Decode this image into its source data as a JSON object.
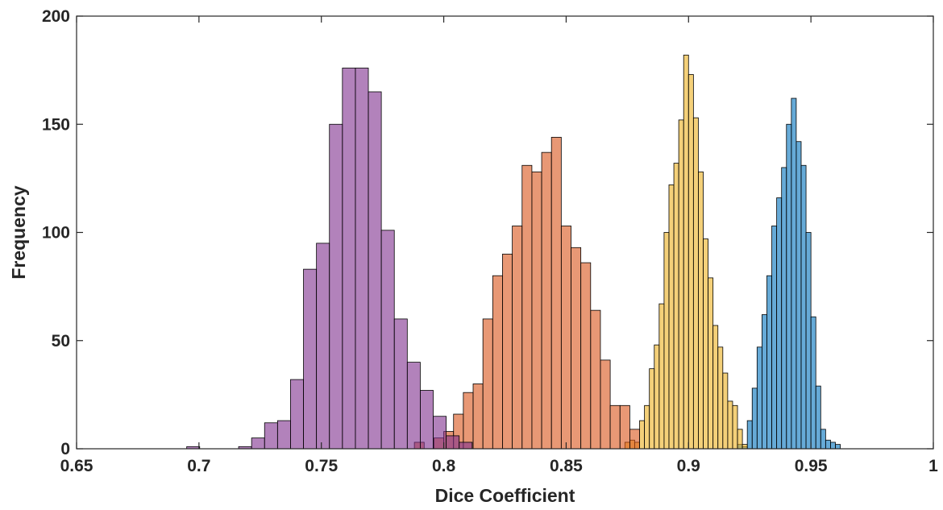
{
  "chart_data": {
    "type": "histogram",
    "title": "",
    "xlabel": "Dice Coefficient",
    "ylabel": "Frequency",
    "xlim": [
      0.65,
      1
    ],
    "ylim": [
      0,
      200
    ],
    "x_ticks": [
      "0.65",
      "0.7",
      "0.75",
      "0.8",
      "0.85",
      "0.9",
      "0.95",
      "1"
    ],
    "y_ticks": [
      "0",
      "50",
      "100",
      "150",
      "200"
    ],
    "grid": false,
    "legend": null,
    "series": [
      {
        "color": "#0072BD",
        "alpha": 0.6,
        "bin_start": 0.918,
        "bin_width": 0.002,
        "values": [
          0,
          2,
          1,
          13,
          28,
          47,
          62,
          80,
          103,
          116,
          130,
          150,
          162,
          142,
          131,
          100,
          61,
          29,
          9,
          4,
          3,
          2
        ]
      },
      {
        "color": "#EDB120",
        "alpha": 0.6,
        "bin_start": 0.874,
        "bin_width": 0.002,
        "values": [
          3,
          4,
          3,
          13,
          20,
          37,
          48,
          67,
          100,
          122,
          132,
          152,
          182,
          173,
          153,
          128,
          97,
          79,
          57,
          47,
          35,
          22,
          20,
          9,
          2
        ]
      },
      {
        "color": "#D95319",
        "alpha": 0.6,
        "bin_start": 0.788,
        "bin_width": 0.004,
        "values": [
          3,
          0,
          5,
          8,
          16,
          26,
          30,
          60,
          80,
          90,
          103,
          131,
          128,
          137,
          144,
          103,
          93,
          86,
          64,
          41,
          20,
          20,
          9
        ]
      },
      {
        "color": "#7E2F8E",
        "alpha": 0.6,
        "bin_start": 0.695,
        "bin_width": 0.0053,
        "values": [
          1,
          0,
          0,
          0,
          1,
          5,
          12,
          13,
          32,
          83,
          95,
          150,
          176,
          176,
          165,
          101,
          60,
          40,
          27,
          15,
          6,
          3
        ]
      }
    ]
  }
}
